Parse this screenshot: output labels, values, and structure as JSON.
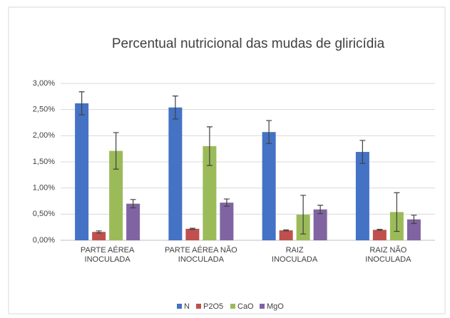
{
  "chart_data": {
    "type": "bar",
    "title": "Percentual nutricional das mudas de gliricídia",
    "categories": [
      [
        "PARTE AÉREA",
        "INOCULADA"
      ],
      [
        "PARTE AÉREA NÃO",
        "INOCULADA"
      ],
      [
        "RAIZ",
        "INOCULADA"
      ],
      [
        "RAIZ NÃO",
        "INOCULADA"
      ]
    ],
    "series": [
      {
        "name": "N",
        "color": "#4472c4",
        "values": [
          2.62,
          2.54,
          2.07,
          1.69
        ],
        "errors": [
          0.22,
          0.22,
          0.22,
          0.22
        ]
      },
      {
        "name": "P2O5",
        "color": "#c0504d",
        "values": [
          0.16,
          0.22,
          0.19,
          0.2
        ],
        "errors": [
          0.02,
          0.01,
          0.01,
          0.01
        ]
      },
      {
        "name": "CaO",
        "color": "#9bbb59",
        "values": [
          1.71,
          1.8,
          0.49,
          0.54
        ],
        "errors": [
          0.35,
          0.37,
          0.37,
          0.37
        ]
      },
      {
        "name": "MgO",
        "color": "#8064a2",
        "values": [
          0.7,
          0.72,
          0.59,
          0.4
        ],
        "errors": [
          0.08,
          0.07,
          0.08,
          0.08
        ]
      }
    ],
    "ylim": [
      0,
      3
    ],
    "yticks": [
      {
        "value": 0,
        "label": "0,00%"
      },
      {
        "value": 0.5,
        "label": "0,50%"
      },
      {
        "value": 1,
        "label": "1,00%"
      },
      {
        "value": 1.5,
        "label": "1,50%"
      },
      {
        "value": 2,
        "label": "2,00%"
      },
      {
        "value": 2.5,
        "label": "2,50%"
      },
      {
        "value": 3,
        "label": "3,00%"
      }
    ],
    "grid": true,
    "legend": "bottom"
  }
}
